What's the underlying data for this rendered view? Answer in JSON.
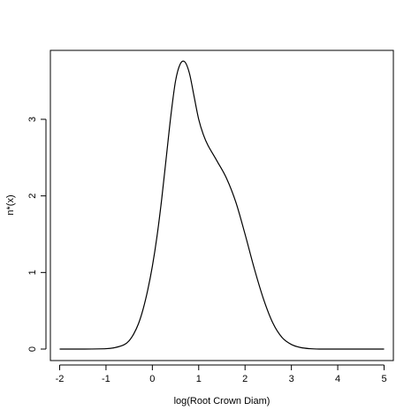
{
  "chart_data": {
    "type": "line",
    "title": "",
    "xlabel": "log(Root Crown Diam)",
    "ylabel": "n*(x)",
    "xlim": [
      -2.2,
      5.2
    ],
    "ylim": [
      -0.15,
      3.9
    ],
    "xticks": [
      -2,
      -1,
      0,
      1,
      2,
      3,
      4,
      5
    ],
    "xtick_labels": [
      "-2",
      "-1",
      "0",
      "1",
      "2",
      "3",
      "4",
      "5"
    ],
    "yticks": [
      0,
      1,
      2,
      3
    ],
    "ytick_labels": [
      "0",
      "1",
      "2",
      "3"
    ],
    "grid": false,
    "legend": "none",
    "line_color": "#000000",
    "series": [
      {
        "x": [
          -2.0,
          -1.5,
          -1.0,
          -0.8,
          -0.6,
          -0.5,
          -0.4,
          -0.3,
          -0.2,
          -0.1,
          0.0,
          0.1,
          0.2,
          0.3,
          0.4,
          0.5,
          0.6,
          0.7,
          0.8,
          0.9,
          1.0,
          1.1,
          1.2,
          1.4,
          1.6,
          1.8,
          2.0,
          2.2,
          2.4,
          2.6,
          2.8,
          3.0,
          3.2,
          3.4,
          3.6,
          4.0,
          4.5,
          5.0
        ],
        "y": [
          0.0,
          0.0,
          0.005,
          0.02,
          0.06,
          0.11,
          0.2,
          0.33,
          0.52,
          0.77,
          1.08,
          1.47,
          1.95,
          2.5,
          3.05,
          3.5,
          3.72,
          3.75,
          3.6,
          3.3,
          3.0,
          2.8,
          2.66,
          2.45,
          2.23,
          1.92,
          1.5,
          1.05,
          0.65,
          0.34,
          0.15,
          0.06,
          0.02,
          0.005,
          0.0,
          0.0,
          0.0,
          0.0
        ]
      }
    ]
  }
}
